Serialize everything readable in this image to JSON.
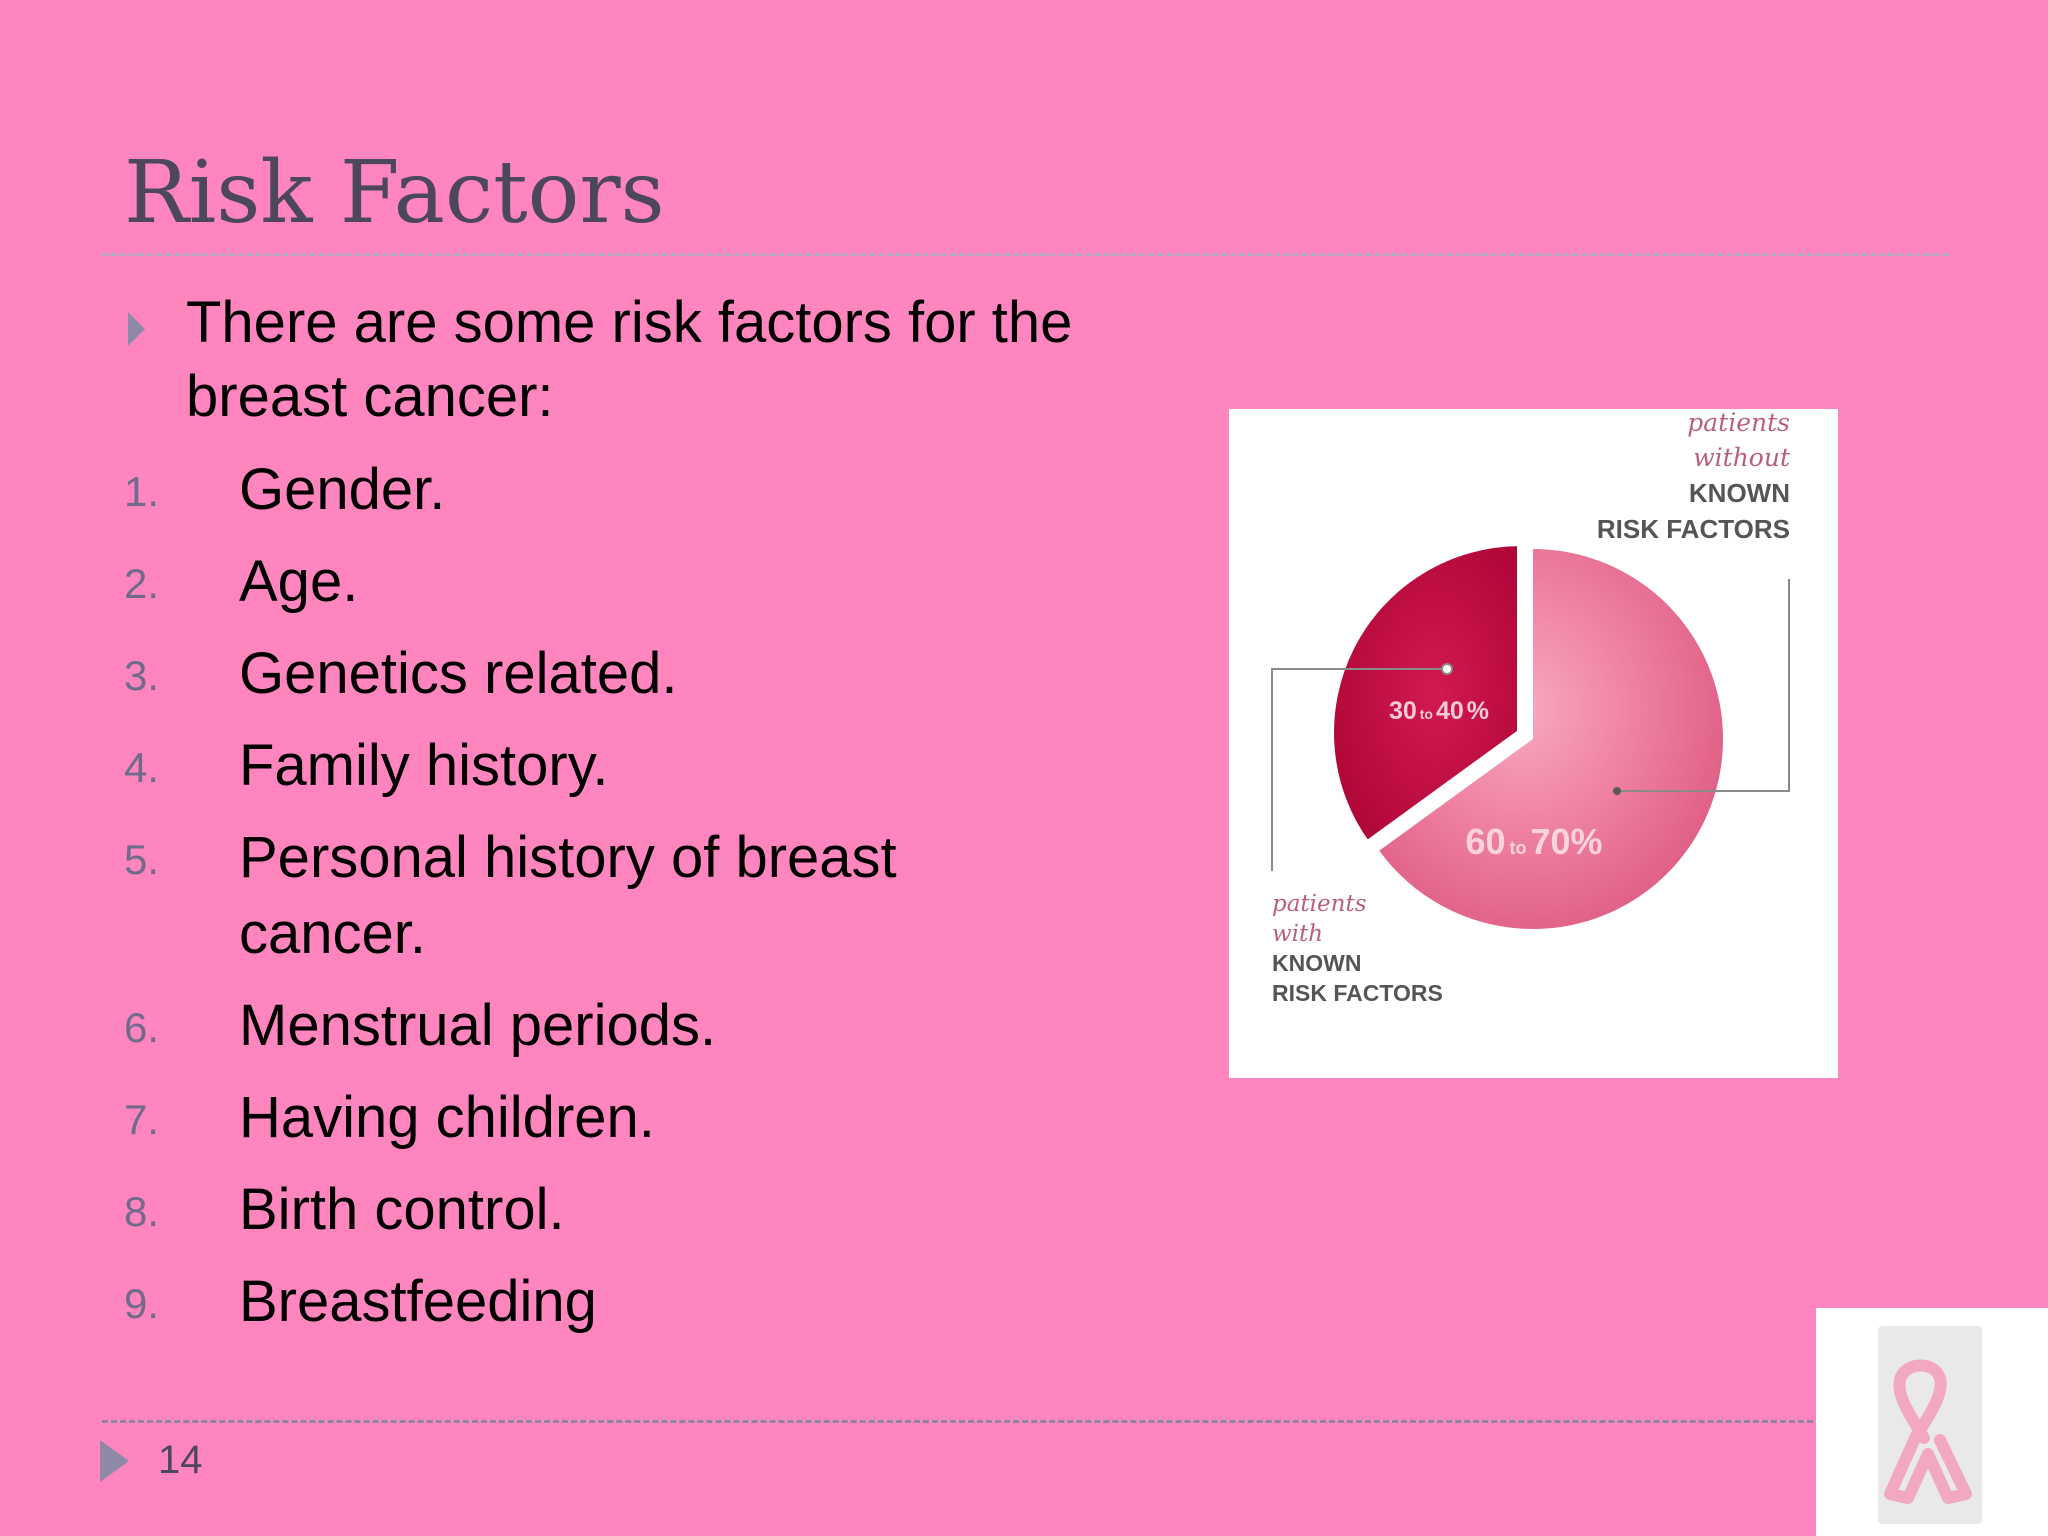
{
  "slide": {
    "title": "Risk Factors",
    "intro": "There are some risk factors for the breast cancer:",
    "risk_factors": [
      {
        "number": "1.",
        "text": "Gender."
      },
      {
        "number": "2.",
        "text": "Age."
      },
      {
        "number": "3.",
        "text": "Genetics related."
      },
      {
        "number": "4.",
        "text": "Family history."
      },
      {
        "number": "5.",
        "text": "Personal history of breast cancer."
      },
      {
        "number": "6.",
        "text": "Menstrual periods."
      },
      {
        "number": "7.",
        "text": "Having children."
      },
      {
        "number": "8.",
        "text": "Birth control."
      },
      {
        "number": "9.",
        "text": "Breastfeeding"
      }
    ],
    "page_number": "14"
  },
  "chart_data": {
    "type": "pie",
    "slices": [
      {
        "label_line1": "patients",
        "label_line2": "with",
        "label_line3": "KNOWN",
        "label_line4": "RISK FACTORS",
        "value_text": "30 to 40 %",
        "value_min": 30,
        "value_max": 40,
        "value": 35,
        "color": "#c4083f",
        "exploded": true
      },
      {
        "label_line1": "patients",
        "label_line2": "without",
        "label_line3": "KNOWN",
        "label_line4": "RISK FACTORS",
        "value_text": "60 to 70%",
        "value_min": 60,
        "value_max": 70,
        "value": 65,
        "color": "#e8638b",
        "exploded": false
      }
    ]
  },
  "colors": {
    "background": "#ff85bf",
    "title": "#4d4859",
    "accent": "#8e8aa6",
    "ribbon": "#f4a3be"
  },
  "icons": {
    "bullet": "triangle-right-icon",
    "footer": "triangle-right-icon",
    "ribbon": "pink-ribbon-icon"
  }
}
